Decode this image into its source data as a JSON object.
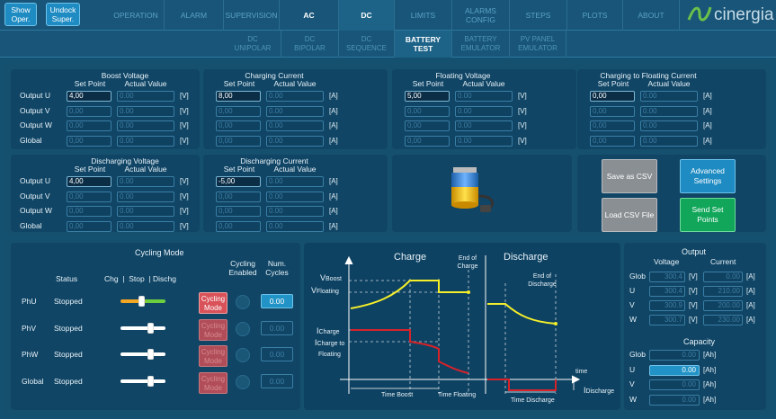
{
  "topbar": {
    "show_oper": "Show Oper.",
    "undock_super": "Undock Super.",
    "tabs": [
      "OPERATION",
      "ALARM",
      "SUPERVISION",
      "AC",
      "DC",
      "LIMITS",
      "ALARMS CONFIG",
      "STEPS",
      "PLOTS",
      "ABOUT"
    ],
    "active_tab": "DC",
    "logo": "cinergia"
  },
  "subtabs": [
    "DC UNIPOLAR",
    "DC BIPOLAR",
    "DC SEQUENCE",
    "BATTERY TEST",
    "BATTERY EMULATOR",
    "PV PANEL EMULATOR"
  ],
  "active_subtab": "BATTERY TEST",
  "labels": {
    "set_point": "Set Point",
    "actual_value": "Actual Value"
  },
  "rows": [
    "Output U",
    "Output V",
    "Output W",
    "Global"
  ],
  "groups": {
    "boost_voltage": {
      "title": "Boost Voltage",
      "unit": "[V]",
      "set": [
        "4,00",
        "0,00",
        "0,00",
        "0,00"
      ],
      "act": [
        "0.00",
        "0.00",
        "0.00",
        "0.00"
      ]
    },
    "charging_current": {
      "title": "Charging Current",
      "unit": "[A]",
      "set": [
        "8,00",
        "0,00",
        "0,00",
        "0,00"
      ],
      "act": [
        "0.00",
        "0.00",
        "0.00",
        "0.00"
      ]
    },
    "floating_voltage": {
      "title": "Floating Voltage",
      "unit": "[V]",
      "set": [
        "5,00",
        "0,00",
        "0,00",
        "0,00"
      ],
      "act": [
        "0.00",
        "0.00",
        "0.00",
        "0.00"
      ]
    },
    "charging_to_floating": {
      "title": "Charging to Floating Current",
      "unit": "[A]",
      "set": [
        "0,00",
        "0,00",
        "0,00",
        "0,00"
      ],
      "act": [
        "0.00",
        "0.00",
        "0.00",
        "0.00"
      ]
    },
    "discharging_voltage": {
      "title": "Discharging Voltage",
      "unit": "[V]",
      "set": [
        "4,00",
        "0,00",
        "0,00",
        "0,00"
      ],
      "act": [
        "0.00",
        "0.00",
        "0.00",
        "0.00"
      ]
    },
    "discharging_current": {
      "title": "Discharging Current",
      "unit": "[A]",
      "set": [
        "-5,00",
        "0,00",
        "0,00",
        "0,00"
      ],
      "act": [
        "0.00",
        "0.00",
        "0.00",
        "0.00"
      ]
    }
  },
  "buttons": {
    "save_csv": "Save as CSV",
    "advanced": "Advanced Settings",
    "load_csv": "Load CSV File",
    "send": "Send Set Points"
  },
  "colors": {
    "grey_btn": "#8a8f93",
    "blue_btn": "#1e8bc2",
    "green_btn": "#11a65a",
    "charge_line": "#f5ef2a",
    "current_line": "#d8222a"
  },
  "cycling": {
    "title": "Cycling Mode",
    "headers": {
      "status": "Status",
      "chg": "Chg  |  Stop  | Dischg",
      "enabled": "Cycling Enabled",
      "num": "Num. Cycles"
    },
    "rows": [
      {
        "name": "PhU",
        "status": "Stopped",
        "mode": "Cycling Mode",
        "cycles": "0.00"
      },
      {
        "name": "PhV",
        "status": "Stopped",
        "mode": "Cycling Mode",
        "cycles": "0.00"
      },
      {
        "name": "PhW",
        "status": "Stopped",
        "mode": "Cycling Mode",
        "cycles": "0.00"
      },
      {
        "name": "Global",
        "status": "Stopped",
        "mode": "Cycling Mode",
        "cycles": "0.00"
      }
    ]
  },
  "diagram": {
    "charge": "Charge",
    "discharge": "Discharge",
    "end_charge": "End of Charge",
    "end_discharge": "End of Discharge",
    "v_boost": "V",
    "v_boost_sub": "Boost",
    "v_float": "V",
    "v_float_sub": "Floating",
    "i_charge": "I",
    "i_charge_sub": "Charge",
    "i_ctf": "I",
    "i_ctf_sub": "Charge to",
    "i_ctf_sub2": "Floating",
    "time": "time",
    "i_dis": "I",
    "i_dis_sub": "Discharge",
    "t_boost": "Time Boost",
    "t_float": "Time Floating",
    "t_dis": "Time Discharge"
  },
  "output": {
    "title": "Output",
    "voltage": "Voltage",
    "current": "Current",
    "vu": "[V]",
    "au": "[A]",
    "rows": [
      {
        "name": "Glob",
        "v": "300.4",
        "a": "0.00"
      },
      {
        "name": "U",
        "v": "300.4",
        "a": "210.00"
      },
      {
        "name": "V",
        "v": "300.9",
        "a": "200.00"
      },
      {
        "name": "W",
        "v": "300.7",
        "a": "230.00"
      }
    ]
  },
  "capacity": {
    "title": "Capacity",
    "unit": "[Ah]",
    "rows": [
      {
        "name": "Glob",
        "v": "0.00"
      },
      {
        "name": "U",
        "v": "0.00"
      },
      {
        "name": "V",
        "v": "0.00"
      },
      {
        "name": "W",
        "v": "0.00"
      }
    ]
  }
}
